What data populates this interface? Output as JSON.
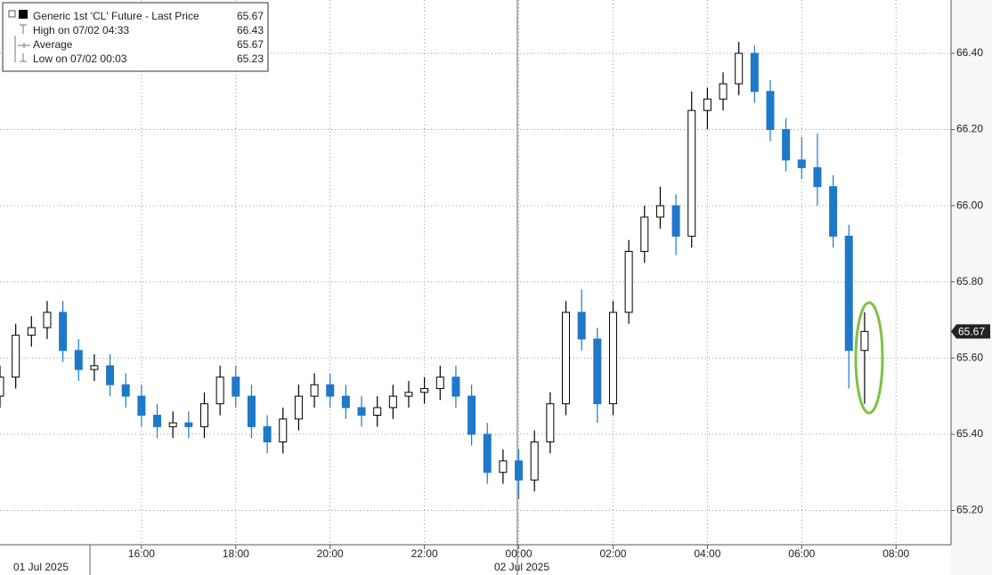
{
  "chart_data": {
    "type": "candlestick",
    "legend": [
      {
        "label": "Generic 1st 'CL' Future - Last Price",
        "value": 65.67
      },
      {
        "label": "High on 07/02 04:33",
        "value": 66.43
      },
      {
        "label": "Average",
        "value": 65.67
      },
      {
        "label": "Low on 07/02 00:03",
        "value": 65.23
      }
    ],
    "date_labels": [
      "01 Jul 2025",
      "02 Jul 2025"
    ],
    "up_color": "#000000",
    "down_color": "#1f78c8",
    "x": [
      780,
      800,
      820,
      840,
      860,
      880,
      900,
      920,
      940,
      960,
      980,
      1000,
      1020,
      1040,
      1060,
      1080,
      1100,
      1120,
      1140,
      1160,
      1180,
      1200,
      1220,
      1240,
      1260,
      1280,
      1300,
      1320,
      1340,
      1360,
      1380,
      1400,
      1420,
      1440,
      1460,
      1480,
      1500,
      1520,
      1540,
      1560,
      1580,
      1600,
      1620,
      1640,
      1660,
      1680,
      1700,
      1720,
      1740,
      1760,
      1780,
      1800,
      1820,
      1840,
      1860,
      1880
    ],
    "open": [
      65.5,
      65.55,
      65.66,
      65.68,
      65.72,
      65.62,
      65.57,
      65.58,
      65.53,
      65.5,
      65.45,
      65.42,
      65.43,
      65.42,
      65.48,
      65.55,
      65.5,
      65.42,
      65.38,
      65.44,
      65.5,
      65.53,
      65.5,
      65.47,
      65.45,
      65.47,
      65.5,
      65.51,
      65.52,
      65.55,
      65.5,
      65.4,
      65.3,
      65.33,
      65.28,
      65.38,
      65.48,
      65.72,
      65.65,
      65.48,
      65.72,
      65.88,
      65.97,
      66.0,
      65.92,
      66.25,
      66.28,
      66.32,
      66.4,
      66.3,
      66.2,
      66.12,
      66.1,
      66.05,
      65.92,
      65.62
    ],
    "high": [
      65.58,
      65.69,
      65.71,
      65.75,
      65.75,
      65.65,
      65.61,
      65.61,
      65.56,
      65.53,
      65.48,
      65.46,
      65.46,
      65.51,
      65.58,
      65.58,
      65.53,
      65.45,
      65.47,
      65.53,
      65.56,
      65.56,
      65.53,
      65.5,
      65.5,
      65.53,
      65.54,
      65.55,
      65.58,
      65.58,
      65.53,
      65.43,
      65.36,
      65.36,
      65.41,
      65.51,
      65.75,
      65.78,
      65.68,
      65.75,
      65.91,
      66.0,
      66.05,
      66.03,
      66.3,
      66.31,
      66.35,
      66.43,
      66.42,
      66.33,
      66.23,
      66.18,
      66.19,
      66.08,
      65.95,
      65.72
    ],
    "low": [
      65.47,
      65.52,
      65.63,
      65.65,
      65.59,
      65.54,
      65.54,
      65.5,
      65.47,
      65.42,
      65.39,
      65.39,
      65.39,
      65.39,
      65.45,
      65.47,
      65.39,
      65.35,
      65.35,
      65.41,
      65.47,
      65.47,
      65.44,
      65.42,
      65.42,
      65.44,
      65.47,
      65.48,
      65.49,
      65.47,
      65.37,
      65.27,
      65.27,
      65.23,
      65.25,
      65.35,
      65.45,
      65.62,
      65.43,
      65.45,
      65.69,
      65.85,
      65.94,
      65.87,
      65.89,
      66.2,
      66.25,
      66.29,
      66.27,
      66.17,
      66.09,
      66.07,
      66.0,
      65.89,
      65.52,
      65.48
    ],
    "close": [
      65.55,
      65.66,
      65.68,
      65.72,
      65.62,
      65.57,
      65.58,
      65.53,
      65.5,
      65.45,
      65.42,
      65.43,
      65.42,
      65.48,
      65.55,
      65.5,
      65.42,
      65.38,
      65.44,
      65.5,
      65.53,
      65.5,
      65.47,
      65.45,
      65.47,
      65.5,
      65.51,
      65.52,
      65.55,
      65.5,
      65.4,
      65.3,
      65.33,
      65.28,
      65.38,
      65.48,
      65.72,
      65.65,
      65.48,
      65.72,
      65.88,
      65.97,
      66.0,
      65.92,
      66.25,
      66.28,
      66.32,
      66.4,
      66.3,
      66.2,
      66.12,
      66.1,
      66.05,
      65.92,
      65.62,
      65.67
    ],
    "xlim": [
      780,
      1990
    ],
    "xticks": [
      {
        "value": 960,
        "label": "16:00"
      },
      {
        "value": 1080,
        "label": "18:00"
      },
      {
        "value": 1200,
        "label": "20:00"
      },
      {
        "value": 1320,
        "label": "22:00"
      },
      {
        "value": 1440,
        "label": "00:00"
      },
      {
        "value": 1560,
        "label": "02:00"
      },
      {
        "value": 1680,
        "label": "04:00"
      },
      {
        "value": 1800,
        "label": "06:00"
      },
      {
        "value": 1920,
        "label": "08:00"
      }
    ],
    "ylim": [
      65.11,
      66.54
    ],
    "yticks": [
      {
        "value": 65.2,
        "label": "65.20"
      },
      {
        "value": 65.4,
        "label": "65.40"
      },
      {
        "value": 65.6,
        "label": "65.60"
      },
      {
        "value": 65.8,
        "label": "65.80"
      },
      {
        "value": 66.0,
        "label": "66.00"
      },
      {
        "value": 66.2,
        "label": "66.20"
      },
      {
        "value": 66.4,
        "label": "66.40"
      }
    ],
    "grid": true
  }
}
